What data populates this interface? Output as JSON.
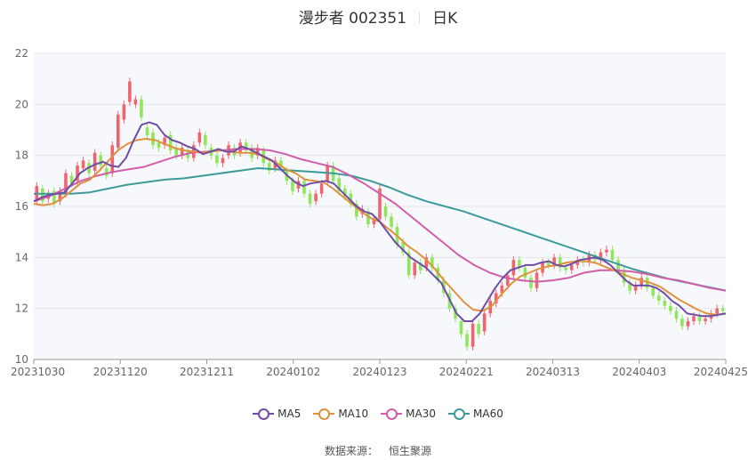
{
  "header": {
    "stock_name": "漫步者 002351",
    "period": "日K"
  },
  "source": {
    "label": "数据来源：",
    "name": "恒生聚源"
  },
  "colors": {
    "up": "#f0656d",
    "down": "#8ee65a",
    "ma5": "#6f4ca6",
    "ma10": "#e0913d",
    "ma30": "#d15fa8",
    "ma60": "#3c9a9a",
    "plot_bg": "#f7f8fc",
    "grid": "#e3e6ef",
    "axis": "#999999"
  },
  "chart_data": {
    "type": "candlestick",
    "ylim": [
      10,
      22
    ],
    "yticks": [
      10,
      12,
      14,
      16,
      18,
      20,
      22
    ],
    "xtick_labels": [
      "20231030",
      "20231120",
      "20231211",
      "20240102",
      "20240123",
      "20240221",
      "20240313",
      "20240403",
      "20240425"
    ],
    "legend_position": "bottom",
    "grid": true,
    "series_names": [
      "MA5",
      "MA10",
      "MA30",
      "MA60"
    ],
    "candles": [
      [
        16.2,
        16.8
      ],
      [
        16.7,
        16.2
      ],
      [
        16.3,
        16.5
      ],
      [
        16.6,
        16.1
      ],
      [
        16.2,
        16.6
      ],
      [
        16.5,
        17.3
      ],
      [
        17.2,
        16.9
      ],
      [
        17.0,
        17.6
      ],
      [
        17.5,
        17.8
      ],
      [
        17.7,
        17.3
      ],
      [
        17.4,
        18.1
      ],
      [
        18.0,
        17.6
      ],
      [
        17.5,
        17.2
      ],
      [
        17.3,
        18.4
      ],
      [
        18.3,
        19.6
      ],
      [
        19.4,
        20.0
      ],
      [
        20.1,
        20.9
      ],
      [
        20.0,
        20.2
      ],
      [
        20.2,
        19.5
      ],
      [
        19.1,
        18.8
      ],
      [
        18.9,
        18.4
      ],
      [
        18.5,
        18.3
      ],
      [
        18.4,
        18.7
      ],
      [
        18.8,
        18.2
      ],
      [
        18.3,
        18.0
      ],
      [
        18.0,
        18.3
      ],
      [
        18.2,
        17.9
      ],
      [
        17.9,
        18.4
      ],
      [
        18.5,
        18.9
      ],
      [
        18.8,
        18.4
      ],
      [
        18.3,
        18.0
      ],
      [
        18.0,
        17.7
      ],
      [
        17.7,
        17.9
      ],
      [
        18.0,
        18.4
      ],
      [
        18.3,
        18.0
      ],
      [
        18.1,
        18.5
      ],
      [
        18.5,
        18.2
      ],
      [
        18.3,
        17.9
      ],
      [
        18.0,
        18.3
      ],
      [
        18.2,
        17.7
      ],
      [
        17.7,
        17.4
      ],
      [
        17.5,
        17.8
      ],
      [
        17.8,
        17.5
      ],
      [
        17.4,
        17.0
      ],
      [
        17.0,
        16.6
      ],
      [
        16.7,
        17.0
      ],
      [
        17.0,
        16.5
      ],
      [
        16.5,
        16.1
      ],
      [
        16.2,
        16.5
      ],
      [
        16.5,
        16.9
      ],
      [
        17.0,
        17.6
      ],
      [
        17.6,
        17.0
      ],
      [
        17.1,
        16.6
      ],
      [
        16.7,
        16.4
      ],
      [
        16.5,
        16.1
      ],
      [
        16.1,
        15.6
      ],
      [
        15.7,
        15.9
      ],
      [
        15.8,
        15.3
      ],
      [
        15.3,
        15.5
      ],
      [
        15.5,
        16.7
      ],
      [
        16.0,
        15.6
      ],
      [
        15.6,
        15.2
      ],
      [
        15.2,
        14.5
      ],
      [
        14.6,
        14.2
      ],
      [
        14.2,
        13.3
      ],
      [
        13.3,
        13.8
      ],
      [
        13.8,
        13.5
      ],
      [
        13.6,
        14.0
      ],
      [
        14.0,
        13.6
      ],
      [
        13.6,
        13.1
      ],
      [
        13.1,
        12.6
      ],
      [
        12.6,
        12.0
      ],
      [
        12.0,
        11.6
      ],
      [
        11.5,
        11.0
      ],
      [
        11.0,
        10.5
      ],
      [
        10.5,
        11.4
      ],
      [
        11.4,
        11.0
      ],
      [
        11.1,
        11.8
      ],
      [
        11.8,
        12.3
      ],
      [
        12.2,
        12.6
      ],
      [
        12.6,
        12.9
      ],
      [
        12.9,
        13.3
      ],
      [
        13.3,
        13.9
      ],
      [
        13.9,
        13.6
      ],
      [
        13.6,
        13.2
      ],
      [
        13.2,
        12.8
      ],
      [
        12.8,
        13.4
      ],
      [
        13.4,
        13.8
      ],
      [
        13.8,
        13.7
      ],
      [
        13.7,
        14.0
      ],
      [
        14.0,
        13.6
      ],
      [
        13.6,
        13.5
      ],
      [
        13.5,
        13.7
      ],
      [
        13.7,
        13.9
      ],
      [
        13.9,
        13.8
      ],
      [
        13.8,
        14.1
      ],
      [
        14.1,
        13.9
      ],
      [
        13.9,
        14.2
      ],
      [
        14.2,
        14.3
      ],
      [
        14.3,
        13.9
      ],
      [
        13.9,
        13.5
      ],
      [
        13.5,
        13.0
      ],
      [
        13.0,
        12.7
      ],
      [
        12.7,
        12.9
      ],
      [
        12.9,
        13.2
      ],
      [
        13.2,
        12.8
      ],
      [
        12.8,
        12.5
      ],
      [
        12.5,
        12.3
      ],
      [
        12.3,
        12.1
      ],
      [
        12.1,
        11.9
      ],
      [
        11.9,
        11.6
      ],
      [
        11.6,
        11.3
      ],
      [
        11.3,
        11.5
      ],
      [
        11.5,
        11.7
      ],
      [
        11.7,
        11.5
      ],
      [
        11.5,
        11.6
      ],
      [
        11.6,
        11.8
      ],
      [
        11.8,
        12.0
      ],
      [
        12.0,
        11.9
      ]
    ],
    "ma5": [
      16.2,
      16.35,
      16.45,
      16.5,
      16.55,
      16.9,
      17.3,
      17.5,
      17.65,
      17.75,
      17.6,
      17.55,
      17.9,
      18.6,
      19.2,
      19.3,
      19.2,
      18.8,
      18.6,
      18.5,
      18.35,
      18.25,
      18.05,
      18.15,
      18.25,
      18.15,
      18.15,
      18.35,
      18.25,
      18.1,
      17.95,
      17.8,
      17.5,
      17.2,
      16.95,
      16.8,
      16.9,
      16.95,
      17.0,
      16.9,
      16.6,
      16.3,
      16.0,
      15.8,
      15.7,
      15.4,
      15.0,
      14.6,
      14.3,
      14.0,
      13.8,
      13.6,
      13.3,
      13.0,
      12.4,
      11.8,
      11.5,
      11.5,
      11.8,
      12.3,
      12.8,
      13.2,
      13.5,
      13.6,
      13.7,
      13.7,
      13.8,
      13.85,
      13.7,
      13.65,
      13.75,
      13.9,
      13.95,
      14.0,
      13.9,
      13.7,
      13.4,
      13.1,
      12.9,
      12.9,
      12.9,
      12.8,
      12.6,
      12.3,
      12.1,
      11.8,
      11.75,
      11.7,
      11.7,
      11.75,
      11.8
    ],
    "ma10": [
      16.1,
      16.05,
      16.1,
      16.3,
      16.6,
      16.9,
      17.05,
      17.4,
      17.8,
      18.2,
      18.45,
      18.6,
      18.65,
      18.6,
      18.45,
      18.3,
      18.2,
      18.15,
      18.1,
      18.15,
      18.2,
      18.15,
      18.1,
      18.1,
      18.05,
      17.85,
      17.7,
      17.45,
      17.3,
      17.05,
      17.0,
      16.95,
      16.7,
      16.4,
      16.1,
      15.8,
      15.55,
      15.4,
      15.1,
      14.8,
      14.45,
      14.2,
      13.9,
      13.5,
      13.05,
      12.65,
      12.25,
      11.95,
      11.9,
      12.1,
      12.55,
      12.95,
      13.25,
      13.4,
      13.55,
      13.65,
      13.7,
      13.8,
      13.85,
      13.85,
      13.8,
      13.65,
      13.5,
      13.35,
      13.2,
      13.1,
      13.0,
      12.85,
      12.6,
      12.35,
      12.15,
      11.95,
      11.8,
      11.75,
      11.8
    ],
    "ma30": [
      16.2,
      16.4,
      16.7,
      17.0,
      17.2,
      17.35,
      17.45,
      17.55,
      17.75,
      17.95,
      18.1,
      18.15,
      18.2,
      18.25,
      18.25,
      18.2,
      18.05,
      17.85,
      17.7,
      17.55,
      17.25,
      16.9,
      16.5,
      16.1,
      15.6,
      15.1,
      14.6,
      14.1,
      13.7,
      13.4,
      13.2,
      13.1,
      13.05,
      13.1,
      13.2,
      13.4,
      13.5,
      13.5,
      13.45,
      13.35,
      13.2,
      13.1,
      12.95,
      12.8,
      12.7
    ],
    "ma60": [
      16.5,
      16.5,
      16.5,
      16.55,
      16.7,
      16.85,
      16.95,
      17.05,
      17.1,
      17.2,
      17.3,
      17.4,
      17.5,
      17.45,
      17.4,
      17.35,
      17.3,
      17.2,
      17.0,
      16.75,
      16.45,
      16.2,
      16.0,
      15.8,
      15.55,
      15.3,
      15.05,
      14.8,
      14.55,
      14.3,
      14.05,
      13.8,
      13.55,
      13.35,
      13.15,
      13.0,
      12.85,
      12.7
    ]
  }
}
